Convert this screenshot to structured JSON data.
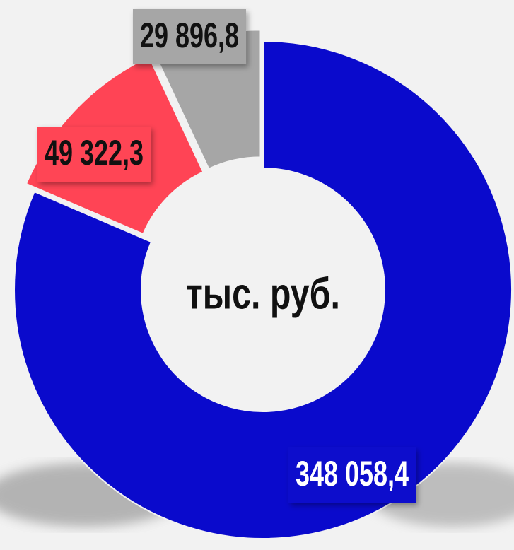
{
  "chart_data": {
    "type": "pie",
    "donut": true,
    "center_label": "тыс. руб.",
    "values": [
      348058.4,
      49322.3,
      29896.8
    ],
    "value_labels": [
      "348 058,4",
      "49 322,3",
      "29 896,8"
    ],
    "colors": [
      "#0a0acc",
      "#ff4455",
      "#a6a6a6"
    ]
  }
}
